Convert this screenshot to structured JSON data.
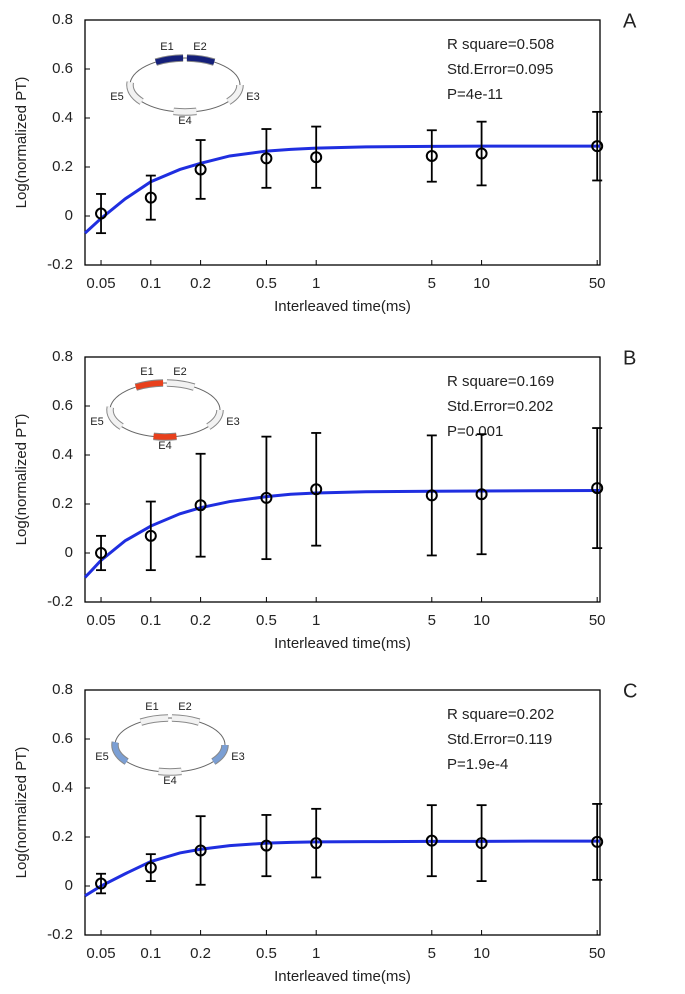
{
  "chart_data": [
    {
      "type": "errorbar",
      "panel": "A",
      "xlabel": "Interleaved time(ms)",
      "ylabel": "Log(normalized PT)",
      "annotations": [
        "R square=0.508",
        "Std.Error=0.095",
        "P=4e-11"
      ],
      "x": [
        0.05,
        0.1,
        0.2,
        0.5,
        1,
        5,
        10,
        50
      ],
      "values": [
        0.01,
        0.075,
        0.19,
        0.235,
        0.24,
        0.245,
        0.255,
        0.285
      ],
      "errors": [
        0.08,
        0.09,
        0.12,
        0.12,
        0.125,
        0.105,
        0.13,
        0.14
      ],
      "color": "#000000",
      "fit": {
        "color": "#1f2ee0",
        "x": [
          0.04,
          0.05,
          0.07,
          0.1,
          0.15,
          0.2,
          0.3,
          0.5,
          0.7,
          1,
          2,
          5,
          10,
          20,
          52
        ],
        "values": [
          -0.07,
          -0.01,
          0.07,
          0.14,
          0.19,
          0.215,
          0.245,
          0.265,
          0.272,
          0.277,
          0.282,
          0.284,
          0.285,
          0.285,
          0.285
        ]
      },
      "inset": {
        "labels": [
          "E1",
          "E2",
          "E3",
          "E4",
          "E5"
        ],
        "colors": [
          "#15207a",
          "#15207a",
          "#f2f2f2",
          "#f2f2f2",
          "#f2f2f2"
        ]
      },
      "xscale": "log",
      "xlim": [
        0.04,
        52
      ],
      "xticks": [
        0.05,
        0.1,
        0.2,
        0.5,
        1,
        5,
        10,
        50
      ],
      "ylim": [
        -0.2,
        0.8
      ],
      "yticks": [
        -0.2,
        0,
        0.2,
        0.4,
        0.6,
        0.8
      ]
    },
    {
      "type": "errorbar",
      "panel": "B",
      "xlabel": "Interleaved time(ms)",
      "ylabel": "Log(normalized PT)",
      "annotations": [
        "R square=0.169",
        "Std.Error=0.202",
        "P=0.001"
      ],
      "x": [
        0.05,
        0.1,
        0.2,
        0.5,
        1,
        5,
        10,
        50
      ],
      "values": [
        0,
        0.07,
        0.195,
        0.225,
        0.26,
        0.235,
        0.24,
        0.265
      ],
      "errors": [
        0.07,
        0.14,
        0.21,
        0.25,
        0.23,
        0.245,
        0.245,
        0.245
      ],
      "color": "#000000",
      "fit": {
        "color": "#1f2ee0",
        "x": [
          0.04,
          0.05,
          0.07,
          0.1,
          0.15,
          0.2,
          0.3,
          0.5,
          0.7,
          1,
          2,
          5,
          10,
          20,
          52
        ],
        "values": [
          -0.1,
          -0.03,
          0.05,
          0.11,
          0.16,
          0.185,
          0.21,
          0.23,
          0.24,
          0.245,
          0.25,
          0.252,
          0.253,
          0.254,
          0.255
        ]
      },
      "inset": {
        "labels": [
          "E1",
          "E2",
          "E3",
          "E4",
          "E5"
        ],
        "colors": [
          "#e8401c",
          "#f2f2f2",
          "#f2f2f2",
          "#e8401c",
          "#f2f2f2"
        ]
      },
      "xscale": "log",
      "xlim": [
        0.04,
        52
      ],
      "xticks": [
        0.05,
        0.1,
        0.2,
        0.5,
        1,
        5,
        10,
        50
      ],
      "ylim": [
        -0.2,
        0.8
      ],
      "yticks": [
        -0.2,
        0,
        0.2,
        0.4,
        0.6,
        0.8
      ]
    },
    {
      "type": "errorbar",
      "panel": "C",
      "xlabel": "Interleaved time(ms)",
      "ylabel": "Log(normalized PT)",
      "annotations": [
        "R square=0.202",
        "Std.Error=0.119",
        "P=1.9e-4"
      ],
      "x": [
        0.05,
        0.1,
        0.2,
        0.5,
        1,
        5,
        10,
        50
      ],
      "values": [
        0.01,
        0.075,
        0.145,
        0.165,
        0.175,
        0.185,
        0.175,
        0.18
      ],
      "errors": [
        0.04,
        0.055,
        0.14,
        0.125,
        0.14,
        0.145,
        0.155,
        0.155
      ],
      "color": "#000000",
      "fit": {
        "color": "#1f2ee0",
        "x": [
          0.04,
          0.05,
          0.07,
          0.1,
          0.15,
          0.2,
          0.3,
          0.5,
          0.7,
          1,
          2,
          5,
          10,
          20,
          52
        ],
        "values": [
          -0.04,
          0.0,
          0.05,
          0.1,
          0.135,
          0.15,
          0.165,
          0.175,
          0.178,
          0.18,
          0.181,
          0.182,
          0.182,
          0.183,
          0.183
        ]
      },
      "inset": {
        "labels": [
          "E1",
          "E2",
          "E3",
          "E4",
          "E5"
        ],
        "colors": [
          "#f2f2f2",
          "#f2f2f2",
          "#7b9fd4",
          "#f2f2f2",
          "#7b9fd4"
        ]
      },
      "xscale": "log",
      "xlim": [
        0.04,
        52
      ],
      "xticks": [
        0.05,
        0.1,
        0.2,
        0.5,
        1,
        5,
        10,
        50
      ],
      "ylim": [
        -0.2,
        0.8
      ],
      "yticks": [
        -0.2,
        0,
        0.2,
        0.4,
        0.6,
        0.8
      ]
    }
  ]
}
